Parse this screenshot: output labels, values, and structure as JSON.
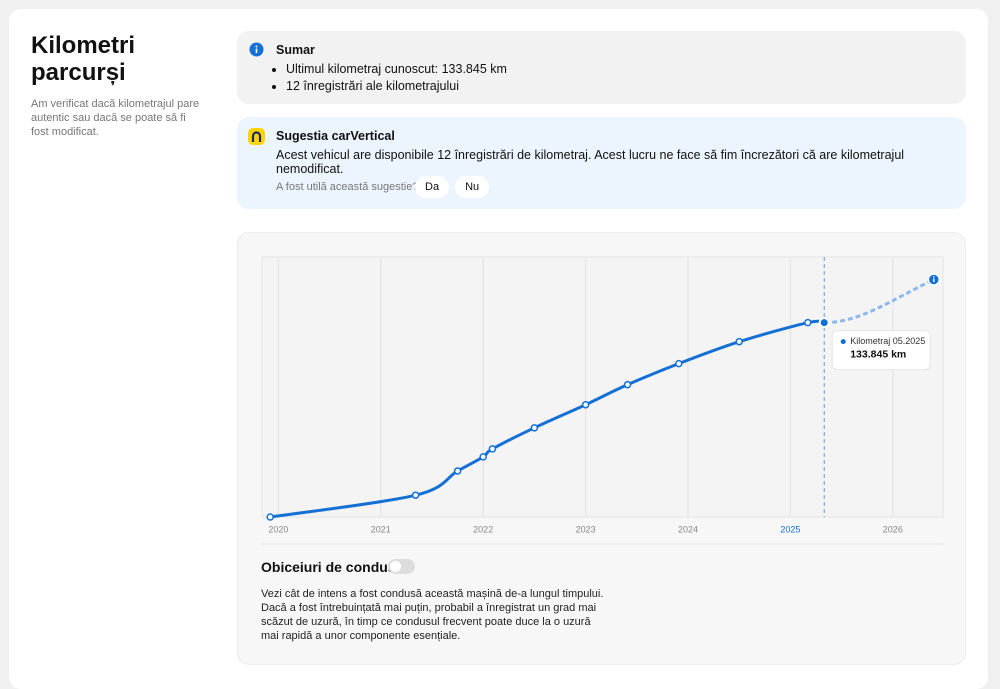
{
  "page": {
    "title": "Kilometri parcurși",
    "description": "Am verificat dacă kilometrajul pare autentic sau dacă se poate să fi fost modificat."
  },
  "summary": {
    "title": "Sumar",
    "items": [
      "Ultimul kilometraj cunoscut: 133.845 km",
      "12 înregistrări ale kilometrajului"
    ]
  },
  "suggestion": {
    "title": "Sugestia carVertical",
    "text": "Acest vehicul are disponibile 12 înregistrări de kilometraj. Acest lucru ne face să fim încrezători că are kilometrajul nemodificat.",
    "question": "A fost utilă această sugestie?",
    "buttons": [
      "Da",
      "Nu"
    ]
  },
  "chart_data": {
    "type": "line",
    "xlim": [
      2019.84,
      2026.49
    ],
    "xticks": [
      2020,
      2021,
      2022,
      2023,
      2024,
      2025,
      2026
    ],
    "ylim": [
      0,
      179000
    ],
    "grid": true,
    "series": [
      {
        "color": "#1570d6",
        "x": [
          2019.92,
          2021.34,
          2021.75,
          2022.0,
          2022.09,
          2022.5,
          2023.0,
          2023.41,
          2023.91,
          2024.5,
          2025.17,
          2025.33
        ],
        "values": [
          0,
          15000,
          31700,
          41400,
          46900,
          61400,
          77300,
          91100,
          105600,
          120700,
          133800,
          133845
        ],
        "value_labels": [
          null,
          null,
          null,
          null,
          null,
          null,
          null,
          null,
          null,
          null,
          null,
          "133.845 km"
        ]
      },
      {
        "color": "#8cb8ec",
        "dashed": true,
        "x": [
          2026.4
        ],
        "values": [
          163500
        ]
      }
    ],
    "tooltip_title": "Kilometraj 05.2025"
  },
  "driving_habits": {
    "title": "Obiceiuri de condus",
    "text": "Vezi cât de intens a fost condusă această mașină de-a lungul timpului. Dacă a fost întrebuințată mai puțin, probabil a înregistrat un grad mai scăzut de uzură, în timp ce condusul frecvent poate duce la o uzură mai rapidă a unor componente esențiale."
  }
}
